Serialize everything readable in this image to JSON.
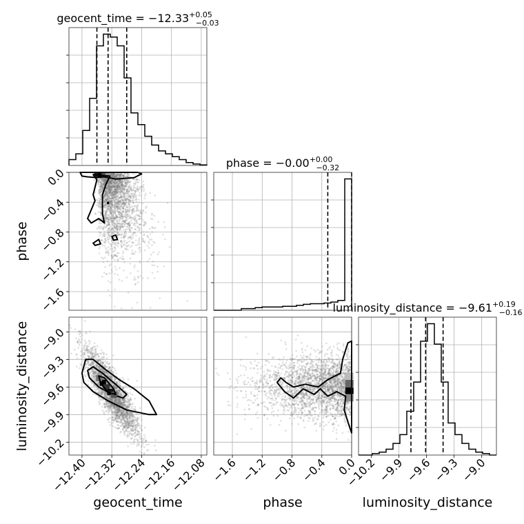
{
  "chart_data": {
    "type": "corner",
    "parameters": [
      "geocent_time",
      "phase",
      "luminosity_distance"
    ],
    "titles": [
      {
        "text": "geocent_time = −12.33",
        "plus": "+0.05",
        "minus": "−0.03"
      },
      {
        "text": "phase = −0.00",
        "plus": "+0.00",
        "minus": "−0.32"
      },
      {
        "text": "luminosity_distance = −9.61",
        "plus": "+0.19",
        "minus": "−0.16"
      }
    ],
    "axes": {
      "geocent_time": {
        "range": [
          -12.435,
          -12.065
        ],
        "ticks": [
          -12.4,
          -12.32,
          -12.24,
          -12.16,
          -12.08
        ],
        "tick_labels": [
          "−12.40",
          "−12.32",
          "−12.24",
          "−12.16",
          "−12.08"
        ]
      },
      "phase": {
        "range": [
          -1.85,
          0.0
        ],
        "ticks": [
          -1.6,
          -1.2,
          -0.8,
          -0.4,
          0.0
        ],
        "tick_labels": [
          "−1.6",
          "−1.2",
          "−0.8",
          "−0.4",
          "0.0"
        ]
      },
      "luminosity_distance": {
        "range": [
          -10.34,
          -8.84
        ],
        "ticks": [
          -10.2,
          -9.9,
          -9.6,
          -9.3,
          -9.0
        ],
        "tick_labels": [
          "−10.2",
          "−9.9",
          "−9.6",
          "−9.3",
          "−9.0"
        ]
      }
    },
    "marginals": [
      {
        "parameter": "geocent_time",
        "quantiles": [
          -12.36,
          -12.33,
          -12.28
        ],
        "counts": [
          2,
          4,
          12,
          23,
          41,
          45,
          44,
          41,
          30,
          18,
          14,
          10,
          7,
          5,
          4,
          3,
          2,
          1,
          0.5,
          0.2
        ]
      },
      {
        "parameter": "phase",
        "quantiles": [
          -0.32,
          0.0
        ],
        "counts": [
          0,
          0,
          0,
          0,
          0.5,
          0.5,
          0.8,
          1,
          1,
          1,
          1.2,
          1.2,
          1.5,
          1.8,
          2,
          2,
          2.2,
          2.5,
          3,
          40
        ]
      },
      {
        "parameter": "luminosity_distance",
        "quantiles": [
          -9.77,
          -9.61,
          -9.42
        ],
        "counts": [
          0,
          0,
          0.5,
          1,
          2,
          4,
          7,
          15,
          25,
          39,
          45,
          38,
          25,
          11,
          7,
          4,
          2,
          1,
          0.5,
          0
        ]
      }
    ],
    "pairs": [
      {
        "x": "geocent_time",
        "y": "phase"
      },
      {
        "x": "geocent_time",
        "y": "luminosity_distance"
      },
      {
        "x": "phase",
        "y": "luminosity_distance"
      }
    ],
    "grid": true
  }
}
